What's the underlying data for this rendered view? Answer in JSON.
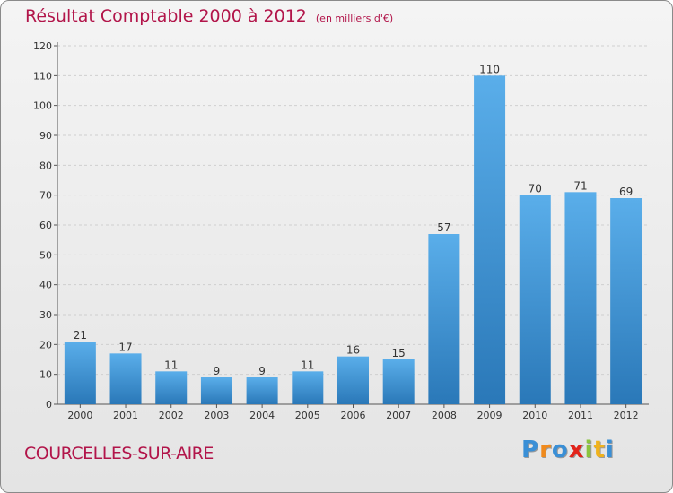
{
  "header": {
    "title": "Résultat Comptable 2000 à 2012",
    "subtitle": "(en milliers d'€)"
  },
  "footer": {
    "commune": "COURCELLES-SUR-AIRE",
    "logo_text": "Proxiti",
    "logo_colors": [
      "#3a8fd6",
      "#f08a1c",
      "#3a8fd6",
      "#e2231a",
      "#8bc43f",
      "#f0b21c",
      "#3a8fd6"
    ]
  },
  "chart_data": {
    "type": "bar",
    "title": "Résultat Comptable 2000 à 2012",
    "subtitle": "(en milliers d'€)",
    "xlabel": "",
    "ylabel": "",
    "categories": [
      "2000",
      "2001",
      "2002",
      "2003",
      "2004",
      "2005",
      "2006",
      "2007",
      "2008",
      "2009",
      "2010",
      "2011",
      "2012"
    ],
    "values": [
      21,
      17,
      11,
      9,
      9,
      11,
      16,
      15,
      57,
      110,
      70,
      71,
      69
    ],
    "data_labels": [
      "21",
      "17",
      "11",
      "9",
      "9",
      "11",
      "16",
      "15",
      "57",
      "110",
      "70",
      "71",
      "69"
    ],
    "ylim": [
      0,
      120
    ],
    "yticks": [
      0,
      10,
      20,
      30,
      40,
      50,
      60,
      70,
      80,
      90,
      100,
      110,
      120
    ],
    "grid": "horizontal dashed",
    "bar_color_top": "#5aaeea",
    "bar_color_bottom": "#2a78b8"
  }
}
